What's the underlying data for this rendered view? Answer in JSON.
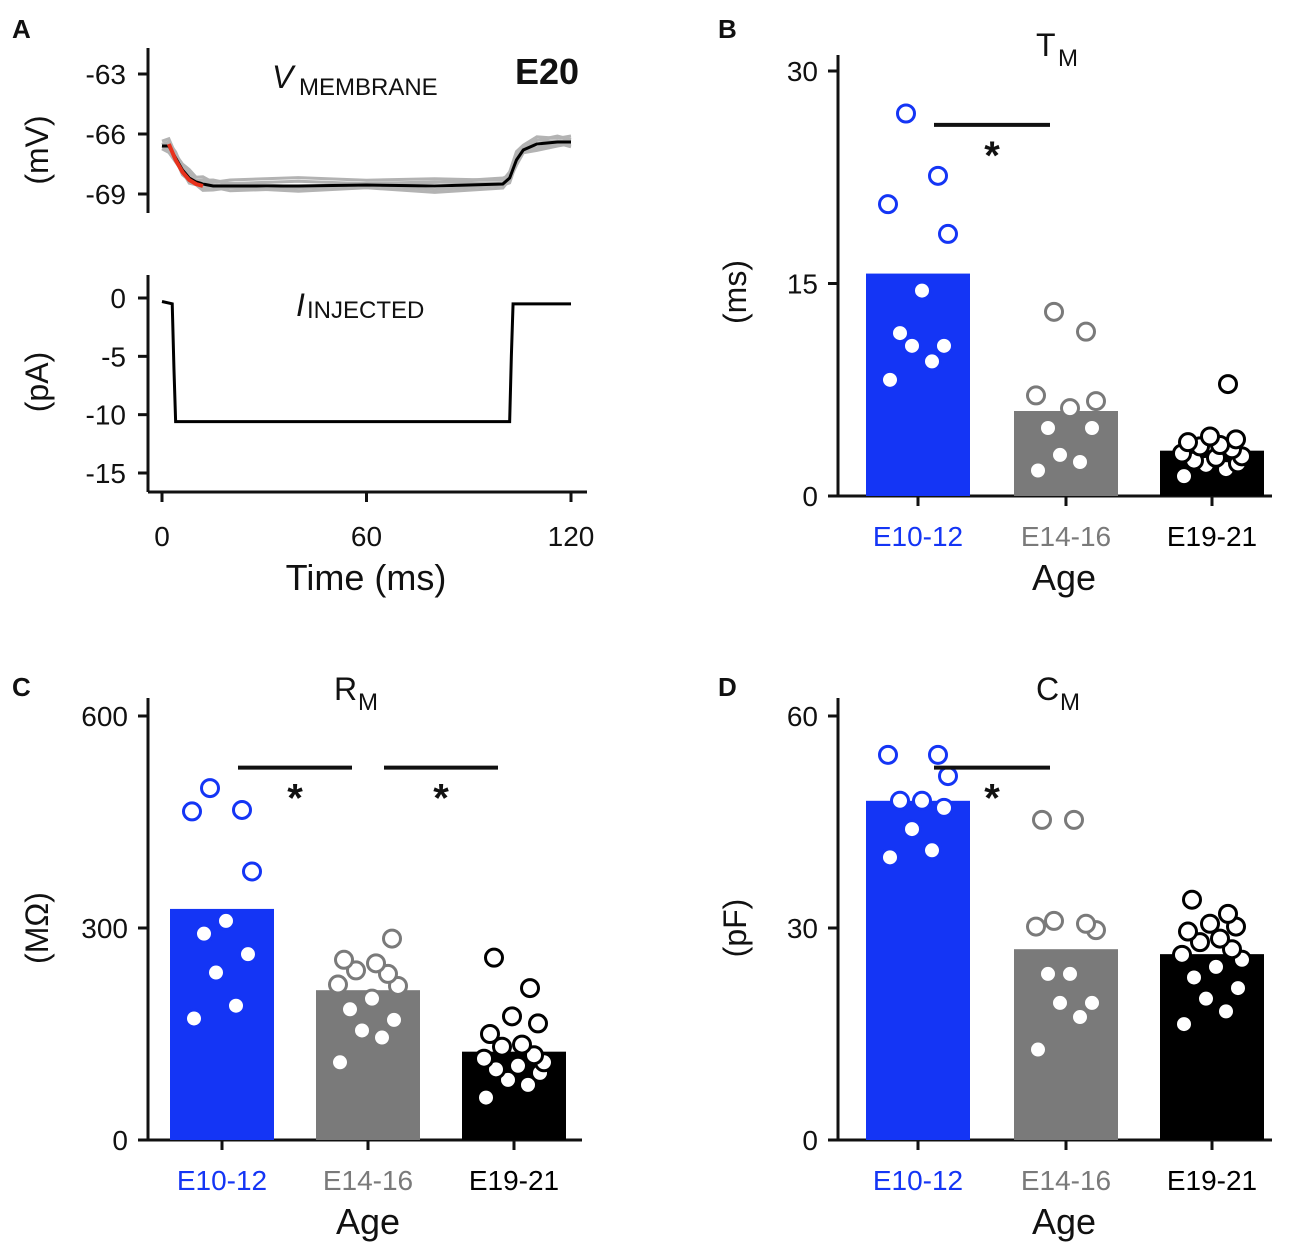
{
  "colors": {
    "blue": "#1435f5",
    "gray": "#7a7a7a",
    "black": "#000000",
    "gray_trace": "#b3b3b3",
    "fit_red": "#e8321c"
  },
  "chart_data": [
    {
      "panel": "A",
      "type": "line",
      "subpanel": "voltage",
      "title_main": "V",
      "title_sub": "MEMBRANE",
      "tag": "E20",
      "ylabel": "(mV)",
      "yticks": [
        -63,
        -66,
        -69
      ],
      "ylim": [
        -69.3,
        -62.5
      ],
      "xlim": [
        -3,
        125
      ],
      "series": [
        {
          "name": "mean",
          "x": [
            0,
            2,
            4,
            6,
            8,
            10,
            12,
            15,
            20,
            40,
            60,
            80,
            100,
            102,
            104,
            106,
            110,
            116,
            120
          ],
          "y": [
            -66.6,
            -66.6,
            -67.2,
            -67.8,
            -68.2,
            -68.4,
            -68.5,
            -68.6,
            -68.6,
            -68.6,
            -68.55,
            -68.6,
            -68.5,
            -68.2,
            -67.3,
            -66.8,
            -66.5,
            -66.4,
            -66.4
          ]
        },
        {
          "name": "exp_fit",
          "x": [
            2,
            4,
            6,
            8,
            10,
            12
          ],
          "y": [
            -66.5,
            -67.3,
            -67.9,
            -68.3,
            -68.5,
            -68.6
          ]
        }
      ]
    },
    {
      "panel": "A",
      "type": "line",
      "subpanel": "current",
      "title_main": "I",
      "title_sub": "INJECTED",
      "ylabel": "(pA)",
      "xlabel": "Time (ms)",
      "yticks": [
        0,
        -5,
        -10,
        -15
      ],
      "xticks": [
        0,
        60,
        120
      ],
      "ylim": [
        -17,
        1.5
      ],
      "xlim": [
        -3,
        125
      ],
      "series": [
        {
          "name": "current",
          "x": [
            0,
            3,
            3.5,
            4,
            60,
            102,
            102.5,
            103,
            120
          ],
          "y": [
            -0.3,
            -0.5,
            -6,
            -10.6,
            -10.6,
            -10.6,
            -5,
            -0.5,
            -0.5
          ]
        }
      ]
    },
    {
      "panel": "B",
      "type": "bar",
      "title_main": "T",
      "title_sub": "M",
      "ylabel": "(ms)",
      "xlabel": "Age",
      "categories": [
        "E10-12",
        "E14-16",
        "E19-21"
      ],
      "values": [
        15.7,
        6.0,
        3.2
      ],
      "yticks": [
        0,
        15,
        30
      ],
      "ylim": [
        0,
        31
      ],
      "points": [
        [
          8.2,
          9.5,
          10.6,
          10.6,
          11.5,
          14.5,
          18.5,
          20.6,
          22.6,
          27.0
        ],
        [
          1.8,
          2.4,
          2.9,
          4.8,
          4.8,
          6.2,
          6.7,
          7.1,
          11.6,
          13.0
        ],
        [
          1.4,
          1.9,
          2.2,
          2.3,
          2.5,
          2.7,
          2.8,
          3.0,
          3.3,
          3.5,
          3.6,
          3.8,
          4.0,
          4.2,
          7.9
        ]
      ],
      "significance": [
        {
          "from": 0,
          "to": 1,
          "y": 26.2,
          "label": "*"
        }
      ]
    },
    {
      "panel": "C",
      "type": "bar",
      "title_main": "R",
      "title_sub": "M",
      "ylabel": "(MΩ)",
      "xlabel": "Age",
      "categories": [
        "E10-12",
        "E14-16",
        "E19-21"
      ],
      "values": [
        327,
        212,
        125
      ],
      "yticks": [
        0,
        300,
        600
      ],
      "ylim": [
        0,
        625
      ],
      "points": [
        [
          172,
          190,
          237,
          263,
          292,
          310,
          380,
          465,
          467,
          498
        ],
        [
          110,
          145,
          155,
          170,
          185,
          200,
          218,
          220,
          235,
          240,
          250,
          255,
          285
        ],
        [
          60,
          78,
          85,
          95,
          100,
          105,
          110,
          115,
          120,
          132,
          135,
          150,
          165,
          175,
          215,
          258
        ]
      ],
      "significance": [
        {
          "from": 0,
          "to": 1,
          "y": 527,
          "label": "*"
        },
        {
          "from": 1,
          "to": 2,
          "y": 527,
          "label": "*"
        }
      ]
    },
    {
      "panel": "D",
      "type": "bar",
      "title_main": "C",
      "title_sub": "M",
      "ylabel": "(pF)",
      "xlabel": "Age",
      "categories": [
        "E10-12",
        "E14-16",
        "E19-21"
      ],
      "values": [
        48,
        27,
        26.3
      ],
      "yticks": [
        0,
        30,
        60
      ],
      "ylim": [
        0,
        62
      ],
      "points": [
        [
          40,
          41,
          44,
          47,
          48,
          48,
          51.5,
          54.5,
          54.5
        ],
        [
          12.8,
          17.4,
          19.4,
          19.4,
          23.5,
          23.5,
          29.7,
          30.2,
          30.6,
          31.0,
          45.3,
          45.3
        ],
        [
          16.4,
          18.2,
          20.0,
          21.5,
          23.0,
          24.5,
          25.5,
          26.2,
          27.0,
          28.0,
          28.5,
          29.5,
          30.2,
          30.6,
          32.0,
          34.0
        ]
      ],
      "significance": [
        {
          "from": 0,
          "to": 1,
          "y": 52.7,
          "label": "*"
        }
      ]
    }
  ]
}
